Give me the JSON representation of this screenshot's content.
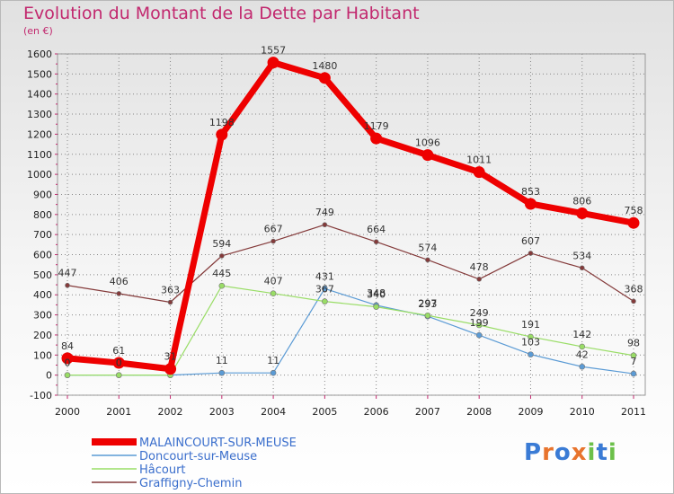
{
  "chart_data": {
    "type": "line",
    "title": "Evolution du Montant de la Dette par Habitant",
    "ylabel": "(en €)",
    "xlabel": "",
    "x": [
      "2000",
      "2001",
      "2002",
      "2003",
      "2004",
      "2005",
      "2006",
      "2007",
      "2008",
      "2009",
      "2010",
      "2011"
    ],
    "ylim": [
      -100,
      1600
    ],
    "yticks": [
      -100,
      0,
      100,
      200,
      300,
      400,
      500,
      600,
      700,
      800,
      900,
      1000,
      1100,
      1200,
      1300,
      1400,
      1500,
      1600
    ],
    "grid": true,
    "legend_position": "bottom-left",
    "series": [
      {
        "name": "MALAINCOURT-SUR-MEUSE",
        "color": "#ee0000",
        "values": [
          84,
          61,
          31,
          1198,
          1557,
          1480,
          1179,
          1096,
          1011,
          853,
          806,
          758
        ]
      },
      {
        "name": "Doncourt-sur-Meuse",
        "color": "#5b9bd5",
        "values": [
          0,
          0,
          0,
          11,
          11,
          431,
          348,
          293,
          199,
          103,
          42,
          7
        ]
      },
      {
        "name": "Hâcourt",
        "color": "#99dd66",
        "values": [
          0,
          0,
          0,
          445,
          407,
          367,
          340,
          297,
          249,
          191,
          142,
          98
        ]
      },
      {
        "name": "Graffigny-Chemin",
        "color": "#843a3a",
        "values": [
          447,
          406,
          363,
          594,
          667,
          749,
          664,
          574,
          478,
          607,
          534,
          368
        ]
      }
    ],
    "data_labels": [
      {
        "series": 0,
        "texts": [
          "84",
          "61",
          "31",
          "1198",
          "1557",
          "1480",
          "1179",
          "1096",
          "1011",
          "853",
          "806",
          "758"
        ]
      },
      {
        "series": 1,
        "texts": [
          "0",
          "0",
          "",
          "11",
          "11",
          "431",
          "348",
          "293",
          "199",
          "103",
          "42",
          "7"
        ]
      },
      {
        "series": 2,
        "texts": [
          "0",
          "0",
          "",
          "445",
          "407",
          "367",
          "340",
          "297",
          "249",
          "191",
          "142",
          "98"
        ]
      },
      {
        "series": 3,
        "texts": [
          "447",
          "406",
          "363",
          "594",
          "667",
          "749",
          "664",
          "574",
          "478",
          "607",
          "534",
          "368"
        ]
      }
    ]
  },
  "branding": {
    "logo_text": "Proxiti"
  }
}
